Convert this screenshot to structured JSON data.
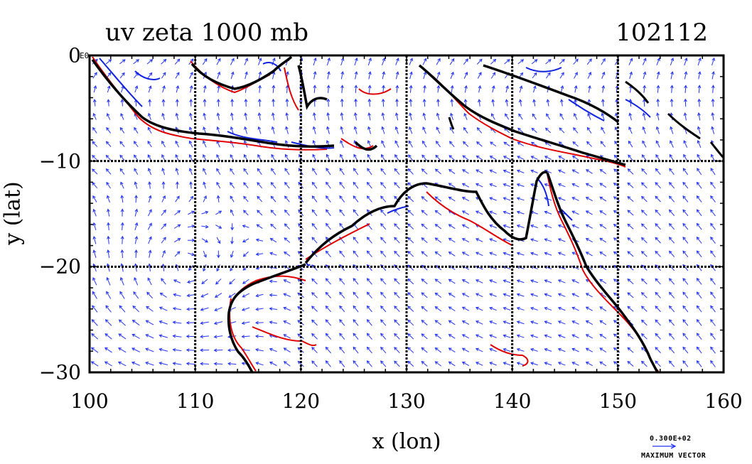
{
  "title": "uv zeta 1000 mb",
  "date_code": "102112",
  "corner_label": "E0",
  "x_axis": {
    "label": "x (lon)",
    "range": [
      100,
      160
    ],
    "ticks": [
      "100",
      "110",
      "120",
      "130",
      "140",
      "150",
      "160"
    ]
  },
  "y_axis": {
    "label": "y (lat)",
    "range": [
      -30,
      0
    ],
    "ticks": [
      "0",
      "−10",
      "−20",
      "−30"
    ]
  },
  "reference_vector": {
    "value": "0.300E+02",
    "label": "MAXIMUM VECTOR"
  },
  "colors": {
    "vectors": "#2233ee",
    "positive_contour": "#e00000",
    "negative_contour": "#1122dd",
    "coastline": "#000000",
    "grid": "#000000"
  },
  "grid_lines": {
    "lon": [
      110,
      120,
      130,
      140,
      150
    ],
    "lat": [
      -10,
      -20
    ]
  },
  "icon": "vector-arrow-icon"
}
